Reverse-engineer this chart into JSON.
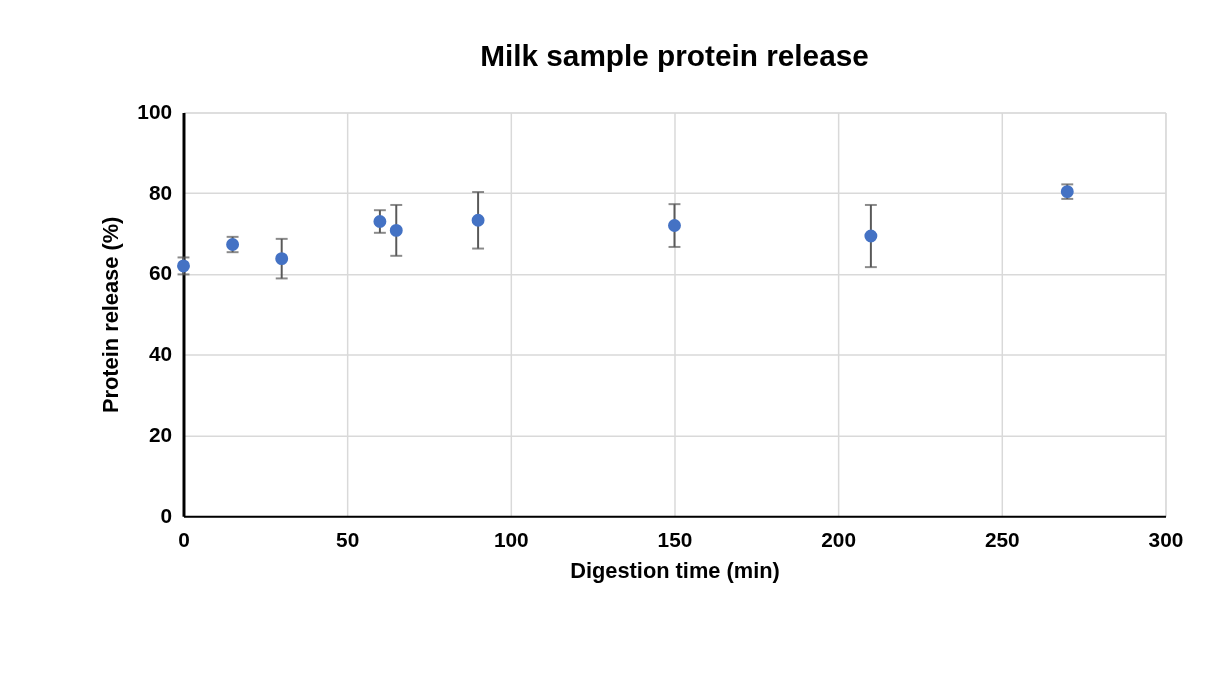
{
  "chart_data": {
    "type": "scatter",
    "title": "Milk sample protein release",
    "xlabel": "Digestion time (min)",
    "ylabel": "Protein release (%)",
    "x": [
      0,
      15,
      30,
      60,
      65,
      90,
      150,
      210,
      270
    ],
    "series": [
      {
        "color": "#4472c4",
        "values": [
          62.0,
          67.3,
          63.8,
          73.0,
          70.8,
          73.3,
          72.0,
          69.4,
          80.4
        ],
        "errors": [
          2.1,
          1.9,
          4.9,
          2.8,
          6.3,
          7.0,
          5.3,
          7.7,
          1.8
        ]
      }
    ],
    "xlim": [
      0,
      300
    ],
    "xticks": [
      0,
      50,
      100,
      150,
      200,
      250,
      300
    ],
    "ylim": [
      0,
      100
    ],
    "yticks": [
      0,
      20,
      40,
      60,
      80,
      100
    ],
    "grid": true,
    "marker": "circle"
  }
}
